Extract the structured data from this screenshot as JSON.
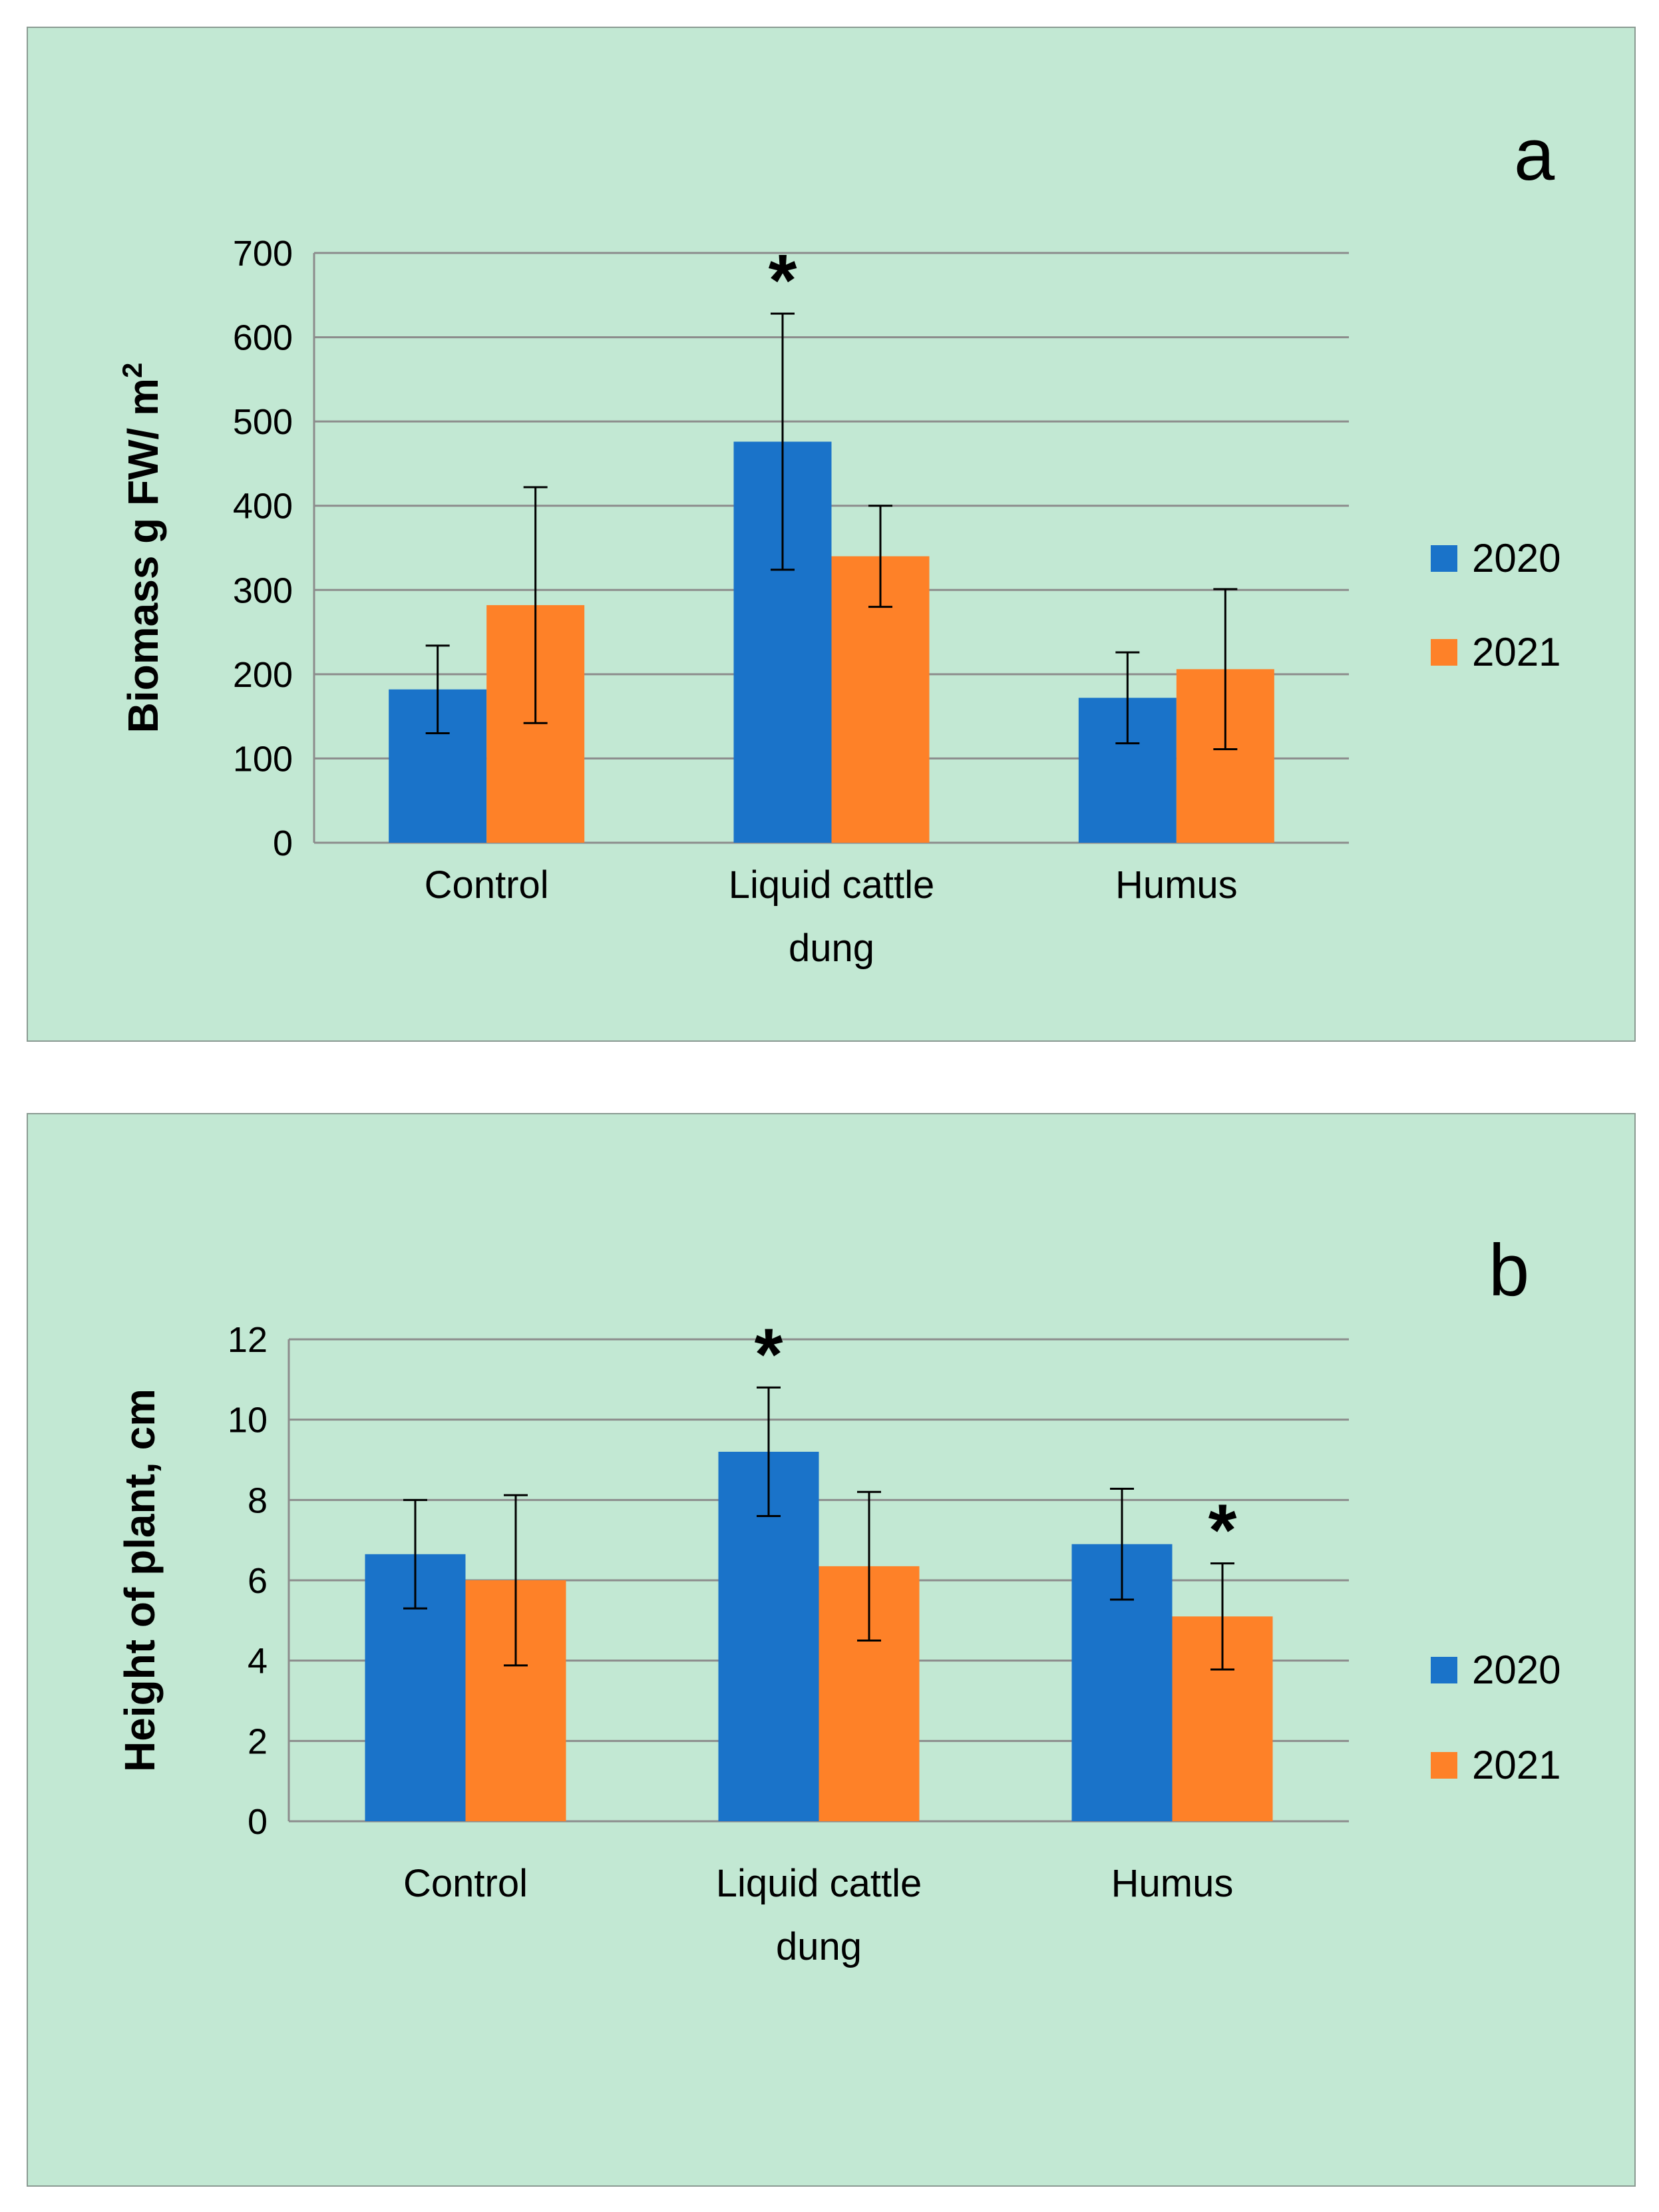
{
  "chart_data": [
    {
      "type": "bar",
      "panel_label": "a",
      "title": "",
      "xlabel": "",
      "ylabel": "Biomass g FW/ m",
      "ylabel_superscript": "2",
      "categories": [
        "Control",
        "Liquid cattle dung",
        "Humus"
      ],
      "category_lines": [
        [
          "Control"
        ],
        [
          "Liquid cattle",
          "dung"
        ],
        [
          "Humus"
        ]
      ],
      "ylim": [
        0,
        700
      ],
      "yticks": [
        "0",
        "100",
        "200",
        "300",
        "400",
        "500",
        "600",
        "700"
      ],
      "grid": true,
      "legend_position": "right",
      "series": [
        {
          "name": "2020",
          "color": "#1a73c9",
          "values": [
            182,
            476,
            172
          ],
          "errors": [
            52,
            152,
            54
          ],
          "significance": [
            "",
            "*",
            ""
          ]
        },
        {
          "name": "2021",
          "color": "#fe8128",
          "values": [
            282,
            340,
            206
          ],
          "errors": [
            140,
            60,
            95
          ],
          "significance": [
            "",
            "",
            ""
          ]
        }
      ]
    },
    {
      "type": "bar",
      "panel_label": "b",
      "title": "",
      "xlabel": "",
      "ylabel": "Height of plant, cm",
      "ylabel_superscript": "",
      "categories": [
        "Control",
        "Liquid cattle dung",
        "Humus"
      ],
      "category_lines": [
        [
          "Control"
        ],
        [
          "Liquid cattle",
          "dung"
        ],
        [
          "Humus"
        ]
      ],
      "ylim": [
        0,
        12
      ],
      "yticks": [
        "0",
        "2",
        "4",
        "6",
        "8",
        "10",
        "12"
      ],
      "grid": true,
      "legend_position": "right",
      "series": [
        {
          "name": "2020",
          "color": "#1a73c9",
          "values": [
            6.65,
            9.2,
            6.9
          ],
          "errors": [
            1.35,
            1.6,
            1.38
          ],
          "significance": [
            "",
            "*",
            ""
          ]
        },
        {
          "name": "2021",
          "color": "#fe8128",
          "values": [
            6.0,
            6.35,
            5.1
          ],
          "errors": [
            2.12,
            1.85,
            1.32
          ],
          "significance": [
            "",
            "",
            "*"
          ]
        }
      ]
    }
  ]
}
